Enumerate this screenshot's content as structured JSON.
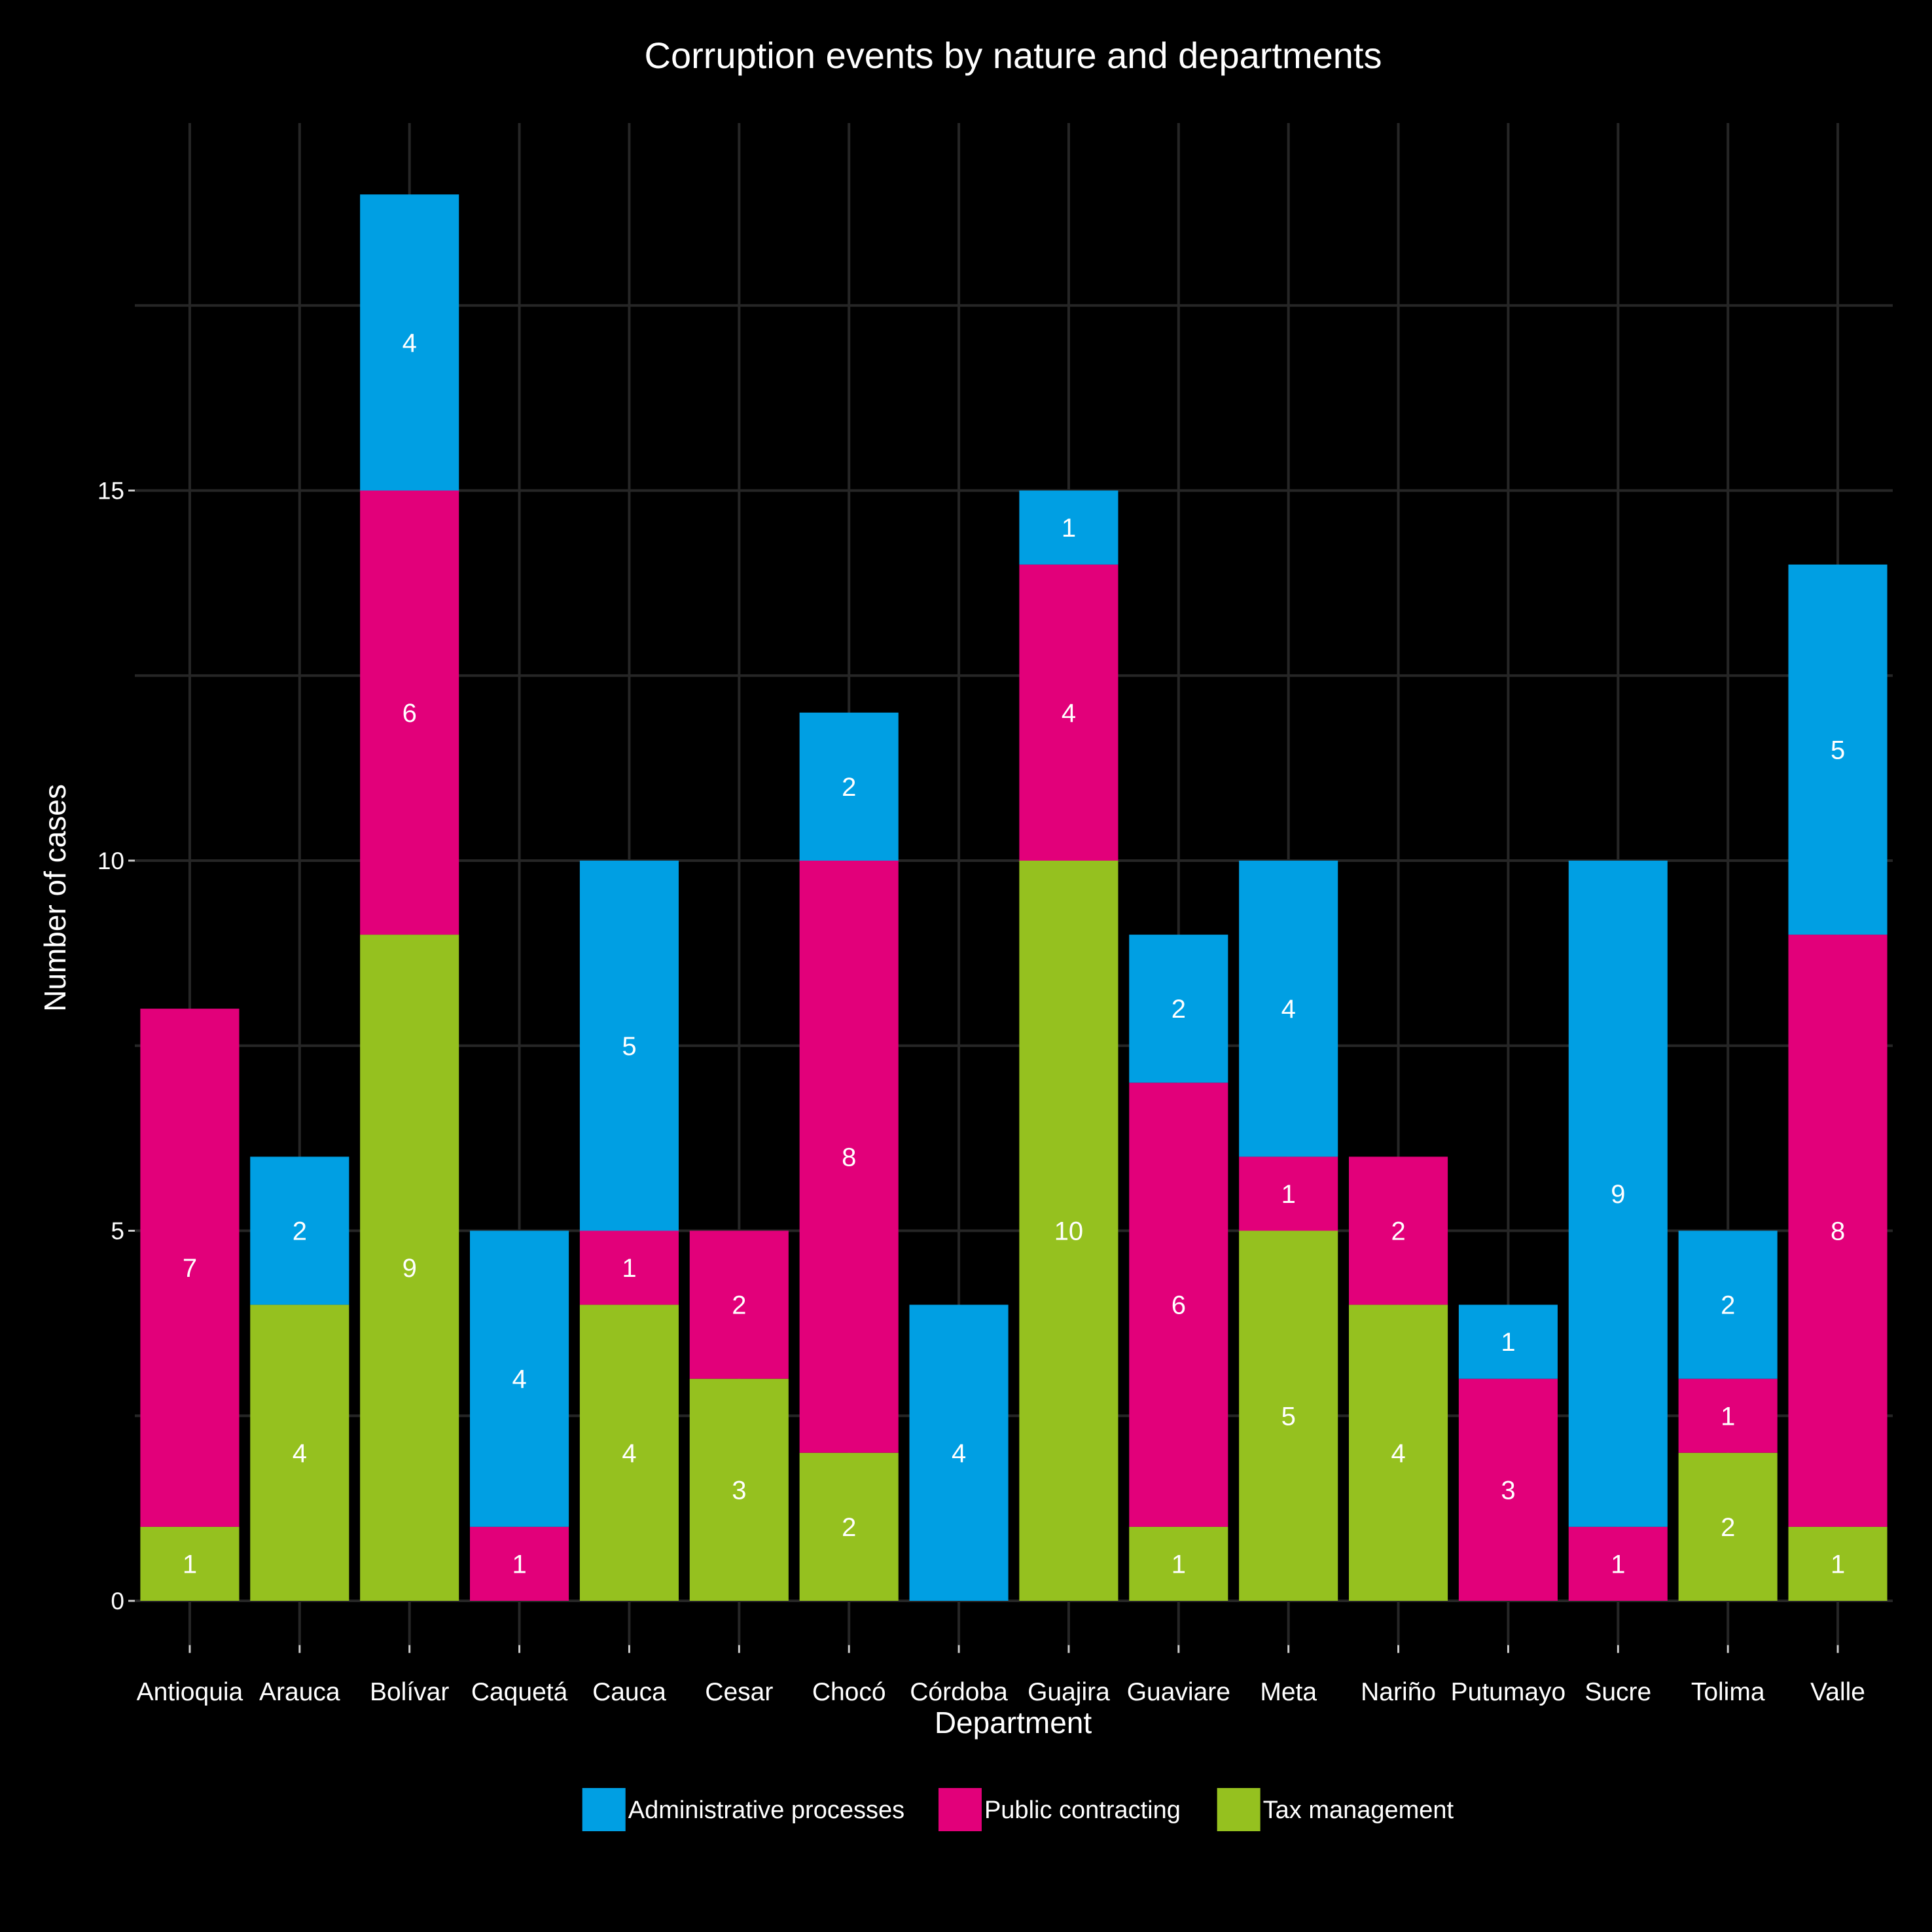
{
  "chart_data": {
    "type": "bar",
    "stacked": true,
    "title": "Corruption events by nature and departments",
    "xlabel": "Department",
    "ylabel": "Number of cases",
    "categories": [
      "Antioquia",
      "Arauca",
      "Bolívar",
      "Caquetá",
      "Cauca",
      "Cesar",
      "Chocó",
      "Córdoba",
      "Guajira",
      "Guaviare",
      "Meta",
      "Nariño",
      "Putumayo",
      "Sucre",
      "Tolima",
      "Valle"
    ],
    "series": [
      {
        "name": "Tax management",
        "color": "#95c11f",
        "values": [
          1,
          4,
          9,
          0,
          4,
          3,
          2,
          0,
          10,
          1,
          5,
          4,
          0,
          0,
          2,
          1
        ]
      },
      {
        "name": "Public contracting",
        "color": "#e2007a",
        "values": [
          7,
          0,
          6,
          1,
          1,
          2,
          8,
          0,
          4,
          6,
          1,
          2,
          3,
          1,
          1,
          8
        ]
      },
      {
        "name": "Administrative processes",
        "color": "#009fe3",
        "values": [
          0,
          2,
          4,
          4,
          5,
          0,
          2,
          4,
          1,
          2,
          4,
          0,
          1,
          9,
          2,
          5
        ]
      }
    ],
    "legend_order": [
      "Administrative processes",
      "Public contracting",
      "Tax management"
    ],
    "yticks": [
      0,
      5,
      10,
      15
    ],
    "ylim": [
      -0.35,
      20
    ],
    "grid": true,
    "legend_position": "bottom"
  }
}
